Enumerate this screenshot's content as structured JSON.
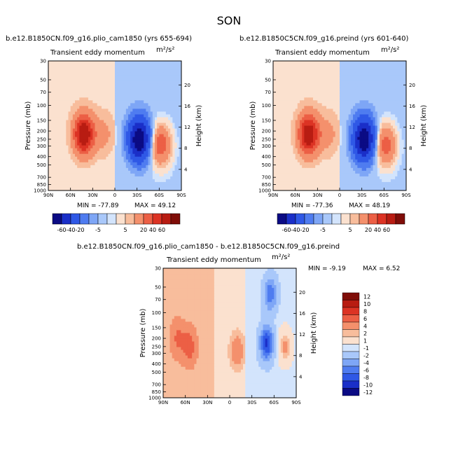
{
  "season": "SON",
  "colors": {
    "full": [
      "#0b0b84",
      "#1a2fc8",
      "#2f58e6",
      "#4f7cf0",
      "#7ea6f6",
      "#a9c8fa",
      "#d3e4fc",
      "#fbe1cf",
      "#f8bd9c",
      "#f4906c",
      "#ec5f45",
      "#dc3324",
      "#b81c12",
      "#7f0d08"
    ],
    "diff": [
      "#0b0b84",
      "#1a2fc8",
      "#2f58e6",
      "#4f7cf0",
      "#7ea6f6",
      "#a9c8fa",
      "#d3e4fc",
      "#fbe1cf",
      "#f8bd9c",
      "#f4906c",
      "#ec5f45",
      "#dc3324",
      "#b81c12",
      "#7f0d08"
    ]
  },
  "chart_data": [
    {
      "type": "heatmap",
      "name": "panel-plio",
      "title": "b.e12.B1850CN.f09_g16.plio_cam1850 (yrs 655-694)",
      "subtitle": "Transient eddy momentum",
      "units": "m²/s²",
      "ylabel": "Pressure (mb)",
      "y2label": "Height (km)",
      "xticks": [
        "90N",
        "60N",
        "30N",
        "0",
        "30S",
        "60S",
        "90S"
      ],
      "yticks": [
        "30",
        "50",
        "70",
        "100",
        "150",
        "200",
        "250",
        "300",
        "400",
        "500",
        "700",
        "850",
        "1000"
      ],
      "y2ticks": [
        "20",
        "16",
        "12",
        "8",
        "4"
      ],
      "min_label": "MIN = -77.89",
      "max_label": "MAX = 49.12",
      "min": -77.89,
      "max": 49.12,
      "colorbar": [
        "-60",
        "-40",
        "-20",
        "-5",
        "5",
        "20",
        "40",
        "60"
      ],
      "features": [
        {
          "lat": 42,
          "p": 220,
          "value": 49
        },
        {
          "lat": -33,
          "p": 250,
          "value": -78
        },
        {
          "lat": -62,
          "p": 290,
          "value": 30
        },
        {
          "lat": 15,
          "p": 220,
          "value": 10
        }
      ]
    },
    {
      "type": "heatmap",
      "name": "panel-preind",
      "title": "b.e12.B1850C5CN.f09_g16.preind (yrs 601-640)",
      "subtitle": "Transient eddy momentum",
      "units": "m²/s²",
      "ylabel": "Pressure (mb)",
      "y2label": "Height (km)",
      "xticks": [
        "90N",
        "60N",
        "30N",
        "0",
        "30S",
        "60S",
        "90S"
      ],
      "yticks": [
        "30",
        "50",
        "70",
        "100",
        "150",
        "200",
        "250",
        "300",
        "400",
        "500",
        "700",
        "850",
        "1000"
      ],
      "y2ticks": [
        "20",
        "16",
        "12",
        "8",
        "4"
      ],
      "min_label": "MIN = -77.36",
      "max_label": "MAX = 48.19",
      "min": -77.36,
      "max": 48.19,
      "colorbar": [
        "-60",
        "-40",
        "-20",
        "-5",
        "5",
        "20",
        "40",
        "60"
      ],
      "features": [
        {
          "lat": 42,
          "p": 220,
          "value": 48
        },
        {
          "lat": -33,
          "p": 250,
          "value": -77
        },
        {
          "lat": -62,
          "p": 290,
          "value": 28
        },
        {
          "lat": 15,
          "p": 220,
          "value": 10
        }
      ]
    },
    {
      "type": "heatmap",
      "name": "panel-diff",
      "title": "b.e12.B1850CN.f09_g16.plio_cam1850 - b.e12.B1850C5CN.f09_g16.preind",
      "subtitle": "Transient eddy momentum",
      "units": "m²/s²",
      "ylabel": "Pressure (mb)",
      "y2label": "Height (km)",
      "xticks": [
        "90N",
        "60N",
        "30N",
        "0",
        "30S",
        "60S",
        "90S"
      ],
      "yticks": [
        "30",
        "50",
        "70",
        "100",
        "150",
        "200",
        "250",
        "300",
        "400",
        "500",
        "700",
        "850",
        "1000"
      ],
      "y2ticks": [
        "20",
        "16",
        "12",
        "8",
        "4"
      ],
      "min_label": "MIN = -9.19",
      "max_label": "MAX = 6.52",
      "min": -9.19,
      "max": 6.52,
      "colorbar": [
        "12",
        "10",
        "8",
        "6",
        "4",
        "2",
        "1",
        "-1",
        "-2",
        "-4",
        "-6",
        "-8",
        "-10",
        "-12"
      ],
      "features": [
        {
          "lat": 55,
          "p": 250,
          "value": 4
        },
        {
          "lat": 70,
          "p": 200,
          "value": 3
        },
        {
          "lat": -10,
          "p": 280,
          "value": 3
        },
        {
          "lat": -50,
          "p": 230,
          "value": -9
        },
        {
          "lat": -55,
          "p": 60,
          "value": -6
        },
        {
          "lat": -75,
          "p": 250,
          "value": 4
        }
      ]
    }
  ]
}
